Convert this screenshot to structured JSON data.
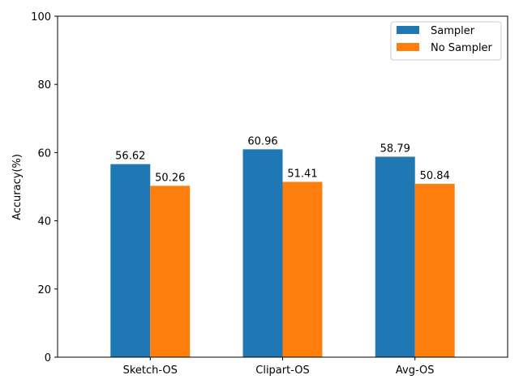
{
  "chart_data": {
    "type": "bar",
    "title": "",
    "xlabel": "",
    "ylabel": "Accuracy(%)",
    "ylim": [
      0,
      100
    ],
    "yticks": [
      0,
      20,
      40,
      60,
      80,
      100
    ],
    "grid": false,
    "legend_position": "top-right",
    "categories": [
      "Sketch-OS",
      "Clipart-OS",
      "Avg-OS"
    ],
    "series": [
      {
        "name": "Sampler",
        "color": "#1f77b4",
        "values": [
          56.62,
          60.96,
          58.79
        ]
      },
      {
        "name": "No Sampler",
        "color": "#ff7f0e",
        "values": [
          50.26,
          51.41,
          50.84
        ]
      }
    ]
  }
}
